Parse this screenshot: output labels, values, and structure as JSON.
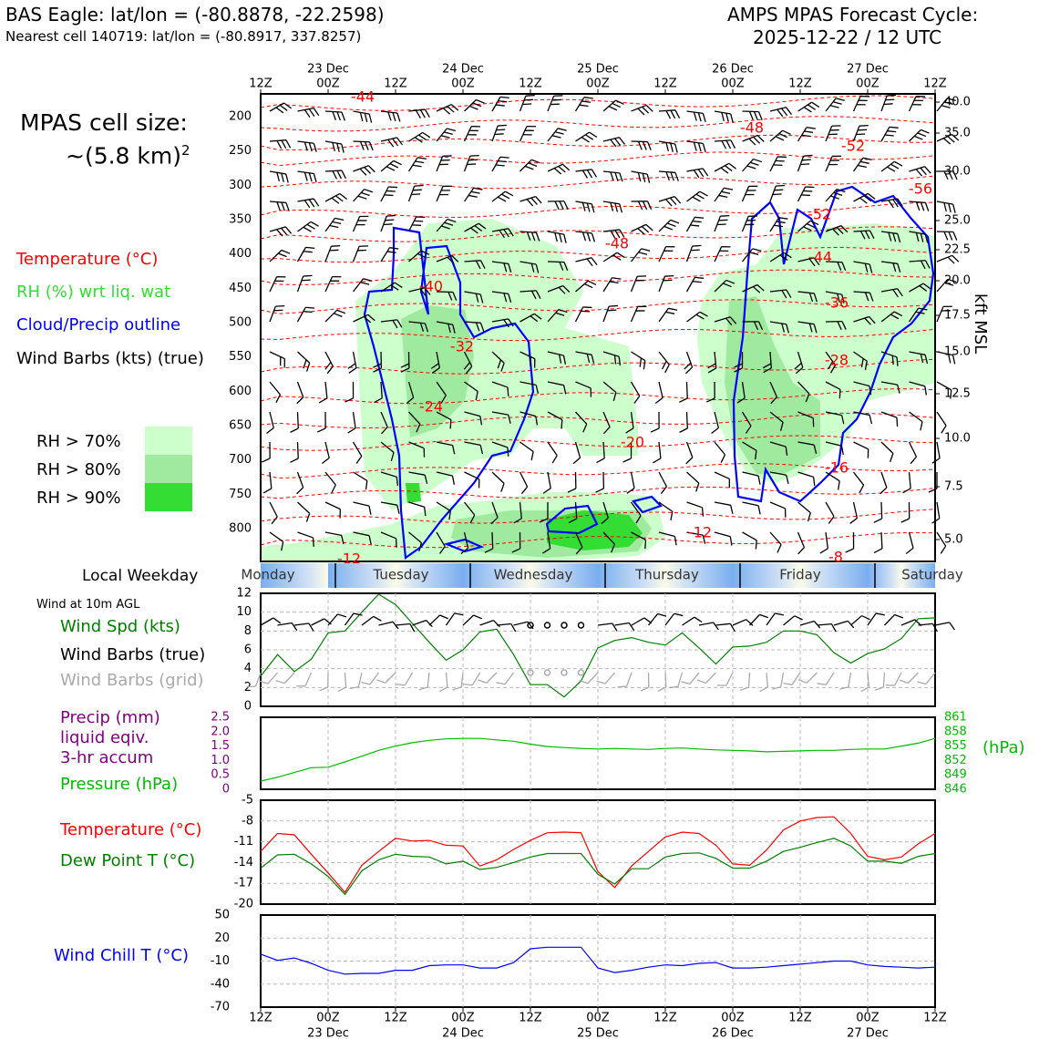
{
  "header": {
    "station": "BAS Eagle: lat/lon = (-80.8878, -22.2598)",
    "nearest": "Nearest cell 140719: lat/lon = (-80.8917, 337.8257)",
    "cycle_line1": "AMPS MPAS Forecast Cycle:",
    "cycle_line2": "2025-12-22 / 12 UTC"
  },
  "cell_size": {
    "line1": "MPAS cell size:",
    "line2": "~(5.8 km)",
    "exponent": "2"
  },
  "legend_top": {
    "temperature": "Temperature (°C)",
    "rh": "RH (%) wrt liq. wat",
    "cloud": "Cloud/Precip outline",
    "barbs": "Wind Barbs (kts) (true)",
    "rh70": "RH > 70%",
    "rh80": "RH > 80%",
    "rh90": "RH > 90%",
    "right_axis_label": "kft MSL"
  },
  "weekday": {
    "label": "Local Weekday",
    "days": [
      "Monday",
      "Tuesday",
      "Wednesday",
      "Thursday",
      "Friday",
      "Saturday"
    ]
  },
  "panel_labels": {
    "wind_at": "Wind at 10m AGL",
    "wind_spd": "Wind Spd (kts)",
    "barbs_true": "Wind Barbs (true)",
    "barbs_grid": "Wind Barbs (grid)",
    "precip1": "Precip (mm)",
    "precip2": "liquid eqiv.",
    "precip3": "3-hr accum",
    "pressure": "Pressure (hPa)",
    "hpa": "(hPa)",
    "temp": "Temperature (°C)",
    "dew": "Dew Point T (°C)",
    "windchill": "Wind Chill T (°C)"
  },
  "colors": {
    "temperature": "#ff0000",
    "rh_label": "#33dd33",
    "cloud": "#0000ff",
    "wind_speed": "#008000",
    "barbs_grid": "#aaaaaa",
    "precip": "#800080",
    "pressure": "#00bb00",
    "dewpoint": "#008000",
    "windchill": "#0000ff",
    "rh70": "#ccffcc",
    "rh80": "#a0eaa0",
    "rh90": "#33dd33"
  },
  "chart_data": [
    {
      "type": "heatmap",
      "x_tick_labels": [
        "12Z",
        "00Z",
        "12Z",
        "00Z",
        "12Z",
        "00Z",
        "12Z",
        "00Z",
        "12Z",
        "00Z",
        "12Z"
      ],
      "date_labels": [
        "23 Dec",
        "24 Dec",
        "25 Dec",
        "26 Dec",
        "27 Dec"
      ],
      "y_left_label_values": [
        "200",
        "250",
        "300",
        "350",
        "400",
        "450",
        "500",
        "550",
        "600",
        "650",
        "700",
        "750",
        "800"
      ],
      "y_right_label_values": [
        "40.0",
        "35.0",
        "30.0",
        "25.0",
        "22.5",
        "20.0",
        "17.5",
        "15.0",
        "12.5",
        "10.0",
        "7.5",
        "5.0"
      ],
      "contour_labels": [
        "-44",
        "-48",
        "-52",
        "-56",
        "-52",
        "-48",
        "-44",
        "-40",
        "-36",
        "-32",
        "-28",
        "-24",
        "-20",
        "-16",
        "-12",
        "-12",
        "-8"
      ]
    },
    {
      "type": "line",
      "name": "Wind Spd (kts)",
      "x_hours": [
        0,
        3,
        6,
        9,
        12,
        15,
        18,
        21,
        24,
        27,
        30,
        33,
        36,
        39,
        42,
        45,
        48,
        51,
        54,
        57,
        60,
        63,
        66,
        69,
        72,
        75,
        78,
        81,
        84,
        87,
        90,
        93,
        96,
        99,
        102,
        105,
        108,
        111,
        114,
        117,
        120
      ],
      "values": [
        3.2,
        5.5,
        3.7,
        5.0,
        7.8,
        8.0,
        10.0,
        11.9,
        10.8,
        8.8,
        6.8,
        4.9,
        6.0,
        7.9,
        8.2,
        5.5,
        2.3,
        2.3,
        1.0,
        2.7,
        6.2,
        7.0,
        7.3,
        6.8,
        6.5,
        7.8,
        6.2,
        4.5,
        6.3,
        6.4,
        6.8,
        8.0,
        8.0,
        7.6,
        5.7,
        4.6,
        5.6,
        6.1,
        7.2,
        9.3,
        9.4
      ],
      "ylim": [
        0,
        12
      ],
      "y_ticks": [
        "0",
        "2",
        "4",
        "6",
        "8",
        "10",
        "12"
      ]
    },
    {
      "type": "line",
      "name": "Pressure (hPa)",
      "x_hours": [
        0,
        3,
        6,
        9,
        12,
        15,
        18,
        21,
        24,
        27,
        30,
        33,
        36,
        39,
        42,
        45,
        48,
        51,
        54,
        57,
        60,
        63,
        66,
        69,
        72,
        75,
        78,
        81,
        84,
        87,
        90,
        93,
        96,
        99,
        102,
        105,
        108,
        111,
        114,
        117,
        120
      ],
      "values": [
        847.7,
        848.5,
        849.5,
        850.5,
        850.6,
        851.7,
        852.9,
        854.1,
        855.0,
        855.7,
        856.2,
        856.5,
        856.6,
        856.6,
        856.3,
        856.0,
        855.4,
        854.9,
        854.7,
        854.5,
        854.4,
        854.5,
        854.4,
        854.3,
        854.5,
        854.6,
        854.4,
        854.2,
        854.1,
        854.0,
        853.8,
        853.9,
        854.0,
        854.1,
        854.1,
        854.3,
        854.4,
        854.4,
        855.0,
        855.6,
        856.6
      ],
      "ylim": [
        846,
        861
      ],
      "y_ticks_right": [
        "846",
        "849",
        "852",
        "855",
        "858",
        "861"
      ],
      "y_ticks_left_precip": [
        "0",
        "0.5",
        "1.0",
        "1.5",
        "2.0",
        "2.5"
      ]
    },
    {
      "type": "line",
      "series": [
        {
          "name": "Temperature (°C)",
          "values": [
            -12.4,
            -9.8,
            -10.0,
            -12.8,
            -15.5,
            -18.3,
            -14.4,
            -12.4,
            -10.5,
            -10.9,
            -10.8,
            -11.5,
            -11.6,
            -14.5,
            -13.6,
            -12.1,
            -10.8,
            -9.7,
            -9.6,
            -9.7,
            -15.3,
            -17.6,
            -14.5,
            -12.4,
            -10.3,
            -9.6,
            -9.8,
            -11.5,
            -14.2,
            -14.4,
            -12.2,
            -9.3,
            -8.0,
            -7.5,
            -7.4,
            -9.8,
            -13.1,
            -13.6,
            -13.2,
            -11.3,
            -9.8
          ]
        },
        {
          "name": "Dew Point T (°C)",
          "values": [
            -14.8,
            -12.9,
            -12.8,
            -14.2,
            -16.0,
            -18.6,
            -15.2,
            -13.6,
            -12.8,
            -13.1,
            -13.2,
            -14.2,
            -13.8,
            -15.0,
            -14.7,
            -14.0,
            -13.2,
            -12.7,
            -12.7,
            -12.7,
            -15.7,
            -17.1,
            -14.9,
            -14.9,
            -13.2,
            -12.7,
            -12.6,
            -13.4,
            -14.8,
            -14.8,
            -13.8,
            -12.4,
            -11.8,
            -11.1,
            -10.5,
            -11.6,
            -13.8,
            -13.8,
            -14.1,
            -13.1,
            -12.7
          ]
        }
      ],
      "ylim": [
        -20,
        -5
      ],
      "y_ticks": [
        "-20",
        "-17",
        "-14",
        "-11",
        "-8",
        "-5"
      ]
    },
    {
      "type": "line",
      "name": "Wind Chill T (°C)",
      "values": [
        -1,
        -9,
        -6,
        -13,
        -22,
        -27,
        -26,
        -26,
        -22,
        -22,
        -16,
        -15,
        -15,
        -19,
        -19,
        -12,
        6,
        8,
        8,
        8,
        -19,
        -25,
        -22,
        -18,
        -15,
        -16,
        -13,
        -12,
        -19,
        -19,
        -18,
        -16,
        -14,
        -12,
        -10,
        -10,
        -15,
        -17,
        -18,
        -19,
        -18
      ],
      "ylim": [
        -70,
        50
      ],
      "y_ticks": [
        "-70",
        "-40",
        "-10",
        "20",
        "50"
      ]
    }
  ]
}
